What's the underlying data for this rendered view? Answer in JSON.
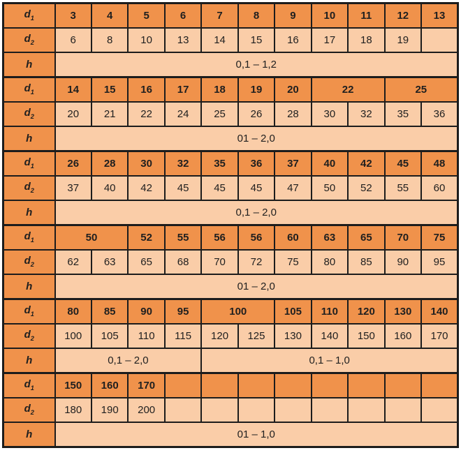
{
  "colors": {
    "orange_cell": "#F0924B",
    "light_cell": "#FACDA8",
    "border": "#1C1C1C",
    "text": "#1F1F1F",
    "background": "#FFFFFF"
  },
  "table": {
    "columns": 11,
    "row_labels": {
      "d_base": "d",
      "d1_sub": "1",
      "d2_sub": "2",
      "h": "h"
    },
    "groups": [
      {
        "d1": [
          "3",
          "4",
          "5",
          "6",
          "7",
          "8",
          "9",
          "10",
          "11",
          "12",
          "13"
        ],
        "d2": [
          "6",
          "8",
          "10",
          "13",
          "14",
          "15",
          "16",
          "17",
          "18",
          "19",
          ""
        ],
        "h": [
          {
            "t": "0,1 – 1,2",
            "span": 11
          }
        ]
      },
      {
        "d1": [
          "14",
          "15",
          "16",
          "17",
          "18",
          "19",
          "20",
          {
            "t": "22",
            "span": 2
          },
          {
            "t": "25",
            "span": 2
          }
        ],
        "d2": [
          "20",
          "21",
          "22",
          "24",
          "25",
          "26",
          "28",
          "30",
          "32",
          "35",
          "36"
        ],
        "h": [
          {
            "t": "01 – 2,0",
            "span": 11
          }
        ]
      },
      {
        "d1": [
          "26",
          "28",
          "30",
          "32",
          "35",
          "36",
          "37",
          "40",
          "42",
          "45",
          "48"
        ],
        "d2": [
          "37",
          "40",
          "42",
          "45",
          "45",
          "45",
          "47",
          "50",
          "52",
          "55",
          "60"
        ],
        "h": [
          {
            "t": "0,1 – 2,0",
            "span": 11
          }
        ]
      },
      {
        "d1": [
          {
            "t": "50",
            "span": 2
          },
          "52",
          "55",
          "56",
          "56",
          "60",
          "63",
          "65",
          "70",
          "75"
        ],
        "d2": [
          "62",
          "63",
          "65",
          "68",
          "70",
          "72",
          "75",
          "80",
          "85",
          "90",
          "95"
        ],
        "h": [
          {
            "t": "01 – 2,0",
            "span": 11
          }
        ]
      },
      {
        "d1": [
          "80",
          "85",
          "90",
          "95",
          {
            "t": "100",
            "span": 2
          },
          "105",
          "110",
          "120",
          "130",
          "140"
        ],
        "d2": [
          "100",
          "105",
          "110",
          "115",
          "120",
          "125",
          "130",
          "140",
          "150",
          "160",
          "170"
        ],
        "h": [
          {
            "t": "0,1 – 2,0",
            "span": 4
          },
          {
            "t": "0,1 – 1,0",
            "span": 7
          }
        ]
      },
      {
        "d1": [
          "150",
          "160",
          "170",
          "",
          "",
          "",
          "",
          "",
          "",
          "",
          ""
        ],
        "d2": [
          "180",
          "190",
          "200",
          "",
          "",
          "",
          "",
          "",
          "",
          "",
          ""
        ],
        "h": [
          {
            "t": "01 – 1,0",
            "span": 11
          }
        ]
      }
    ]
  }
}
